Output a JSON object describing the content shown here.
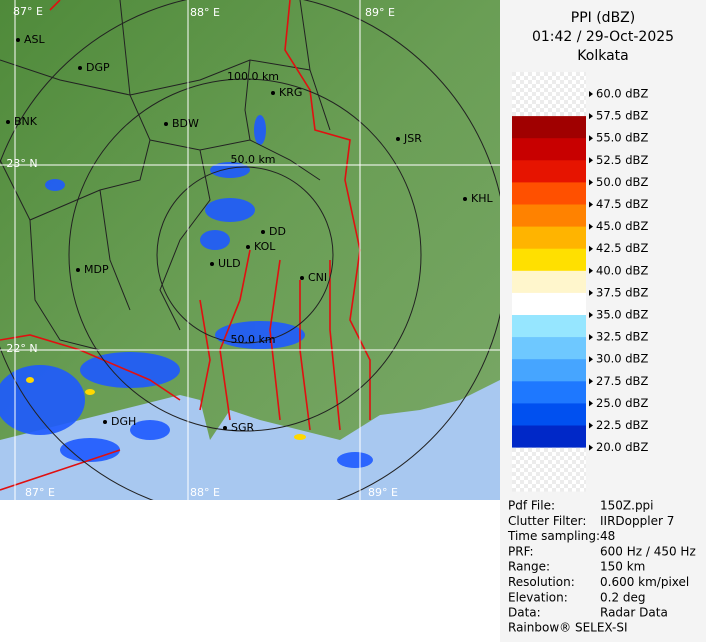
{
  "header": {
    "title": "PPI (dBZ)",
    "time": "01:42 / 29-Oct-2025",
    "station": "Kolkata"
  },
  "map": {
    "grid_labels": [
      "87° E",
      "88° E",
      "89° E",
      "23° N",
      "22° N",
      "87° E",
      "88° E",
      "89° E"
    ],
    "range_labels": [
      "100.0 km",
      "50.0 km",
      "50.0 km"
    ],
    "places": [
      "ASL",
      "DGP",
      "BNK",
      "BDW",
      "KRG",
      "JSR",
      "KHL",
      "DD",
      "KOL",
      "ULD",
      "MDP",
      "CNI",
      "DGH",
      "SGR"
    ]
  },
  "legend": [
    {
      "label": "60.0 dBZ",
      "color": "#f4f4f4"
    },
    {
      "label": "57.5 dBZ",
      "color": "#a00000"
    },
    {
      "label": "55.0 dBZ",
      "color": "#c80000"
    },
    {
      "label": "52.5 dBZ",
      "color": "#e61400"
    },
    {
      "label": "50.0 dBZ",
      "color": "#ff5000"
    },
    {
      "label": "47.5 dBZ",
      "color": "#ff8200"
    },
    {
      "label": "45.0 dBZ",
      "color": "#ffb400"
    },
    {
      "label": "42.5 dBZ",
      "color": "#ffe000"
    },
    {
      "label": "40.0 dBZ",
      "color": "#fff6cc"
    },
    {
      "label": "37.5 dBZ",
      "color": "#ffffff"
    },
    {
      "label": "35.0 dBZ",
      "color": "#96e6ff"
    },
    {
      "label": "32.5 dBZ",
      "color": "#6ec8ff"
    },
    {
      "label": "30.0 dBZ",
      "color": "#46a5ff"
    },
    {
      "label": "27.5 dBZ",
      "color": "#1e78ff"
    },
    {
      "label": "25.0 dBZ",
      "color": "#0050f0"
    },
    {
      "label": "22.5 dBZ",
      "color": "#0028c8"
    },
    {
      "label": "20.0 dBZ",
      "color": "#f4f4f4"
    }
  ],
  "info": [
    [
      "Pdf File:",
      "150Z.ppi"
    ],
    [
      "Clutter Filter:",
      "IIRDoppler 7"
    ],
    [
      "Time sampling:",
      "48"
    ],
    [
      "PRF:",
      "600 Hz / 450 Hz"
    ],
    [
      "Range:",
      "150 km"
    ],
    [
      "Resolution:",
      "0.600 km/pixel"
    ],
    [
      "Elevation:",
      "0.2 deg"
    ],
    [
      "Data:",
      "Radar Data"
    ]
  ],
  "footer": "Rainbow® SELEX-SI"
}
